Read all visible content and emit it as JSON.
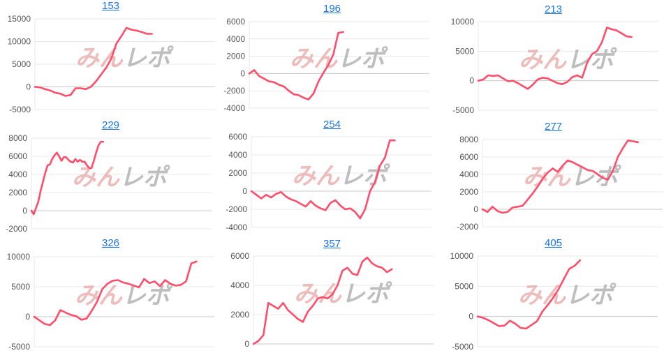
{
  "watermark": {
    "part1": "みん",
    "part2": "レポ",
    "colors": {
      "part1": "#e8a0a0",
      "part2": "#a8a8a8"
    }
  },
  "colors": {
    "line": "#ff4d6a",
    "grid": "#e8e8e8",
    "zero": "#c8c8c8",
    "title_link": "#1a73e8"
  },
  "chart_data": [
    {
      "type": "line",
      "title": "153",
      "xlim": [
        0,
        35
      ],
      "ylim": [
        -5000,
        15000
      ],
      "yticks": [
        -5000,
        0,
        5000,
        10000,
        15000
      ],
      "grid": true,
      "values": [
        0,
        -100,
        -500,
        -800,
        -1300,
        -1500,
        -2000,
        -1800,
        -300,
        -300,
        -500,
        0,
        1200,
        2700,
        4200,
        6200,
        9500,
        11200,
        13000,
        12600,
        12400,
        12100,
        11700,
        11700
      ]
    },
    {
      "type": "line",
      "title": "196",
      "xlim": [
        0,
        36
      ],
      "ylim": [
        -4000,
        6000
      ],
      "yticks": [
        -4000,
        -2000,
        0,
        2000,
        4000,
        6000
      ],
      "grid": true,
      "values": [
        0,
        400,
        -300,
        -600,
        -900,
        -1000,
        -1300,
        -1500,
        -2000,
        -2400,
        -2500,
        -2800,
        -3000,
        -2300,
        -900,
        100,
        1000,
        2200,
        4700,
        4800
      ]
    },
    {
      "type": "line",
      "title": "213",
      "xlim": [
        0,
        36
      ],
      "ylim": [
        -5000,
        10000
      ],
      "yticks": [
        -5000,
        0,
        5000,
        10000
      ],
      "grid": true,
      "values": [
        0,
        200,
        900,
        800,
        900,
        400,
        -100,
        0,
        -400,
        -900,
        -1400,
        -700,
        200,
        500,
        400,
        0,
        -400,
        -600,
        -200,
        600,
        900,
        500,
        3000,
        4500,
        5000,
        6500,
        9000,
        8700,
        8500,
        8000,
        7500,
        7400
      ]
    },
    {
      "type": "line",
      "title": "229",
      "xlim": [
        0,
        77
      ],
      "ylim": [
        -2000,
        8000
      ],
      "yticks": [
        -2000,
        0,
        2000,
        4000,
        6000,
        8000
      ],
      "grid": true,
      "values": [
        0,
        -400,
        300,
        1000,
        2200,
        3200,
        4200,
        5000,
        5100,
        5700,
        6100,
        6400,
        6000,
        5500,
        5900,
        5900,
        5600,
        5400,
        5300,
        5700,
        5400,
        5600,
        5400,
        5400,
        5000,
        4700,
        4700,
        5500,
        6400,
        7200,
        7600,
        7600
      ]
    },
    {
      "type": "line",
      "title": "254",
      "xlim": [
        0,
        36
      ],
      "ylim": [
        -4000,
        6000
      ],
      "yticks": [
        -4000,
        -2000,
        0,
        2000,
        4000,
        6000
      ],
      "grid": true,
      "values": [
        0,
        -400,
        -800,
        -400,
        -700,
        -300,
        -100,
        -600,
        -900,
        -1100,
        -1400,
        -1700,
        -1100,
        -1600,
        -1900,
        -2100,
        -1300,
        -1000,
        -1600,
        -2000,
        -1900,
        -2300,
        -3000,
        -2000,
        0,
        1000,
        2800,
        3700,
        5600,
        5600
      ]
    },
    {
      "type": "line",
      "title": "277",
      "xlim": [
        0,
        35.5
      ],
      "ylim": [
        -2000,
        8000
      ],
      "yticks": [
        -2000,
        0,
        2000,
        4000,
        6000,
        8000
      ],
      "grid": true,
      "values": [
        0,
        -300,
        300,
        -200,
        -400,
        -300,
        200,
        300,
        400,
        1100,
        1800,
        2600,
        3500,
        4200,
        4700,
        4300,
        5000,
        5600,
        5400,
        5100,
        4800,
        4500,
        4400,
        4000,
        3600,
        3400,
        4400,
        6000,
        7000,
        7900,
        7800,
        7700
      ]
    },
    {
      "type": "line",
      "title": "326",
      "xlim": [
        0,
        34
      ],
      "ylim": [
        -5000,
        10000
      ],
      "yticks": [
        -5000,
        0,
        5000,
        10000
      ],
      "grid": true,
      "values": [
        0,
        -600,
        -1200,
        -1400,
        -600,
        1100,
        700,
        300,
        100,
        -500,
        -300,
        1000,
        2500,
        4600,
        5500,
        6000,
        6100,
        5700,
        5500,
        5200,
        4900,
        6300,
        5600,
        5900,
        5100,
        6100,
        5500,
        5200,
        5300,
        5900,
        8900,
        9200
      ]
    },
    {
      "type": "line",
      "title": "357",
      "xlim": [
        0,
        36
      ],
      "ylim": [
        0,
        6000
      ],
      "yticks": [
        0,
        2000,
        4000,
        6000
      ],
      "grid": true,
      "values": [
        0,
        200,
        600,
        2800,
        2600,
        2400,
        2800,
        2300,
        2000,
        1700,
        1500,
        2200,
        2600,
        3100,
        3200,
        3100,
        3400,
        4000,
        5000,
        5200,
        4800,
        4700,
        5600,
        5900,
        5500,
        5300,
        5200,
        4900,
        5100
      ]
    },
    {
      "type": "line",
      "title": "405",
      "xlim": [
        0,
        33
      ],
      "ylim": [
        -5000,
        10000
      ],
      "yticks": [
        -5000,
        0,
        5000,
        10000
      ],
      "grid": true,
      "values": [
        0,
        -200,
        -600,
        -1100,
        -1600,
        -1500,
        -700,
        -1200,
        -1900,
        -2000,
        -1400,
        -800,
        800,
        1900,
        3100,
        4500,
        6200,
        7900,
        8400,
        9300
      ]
    }
  ]
}
